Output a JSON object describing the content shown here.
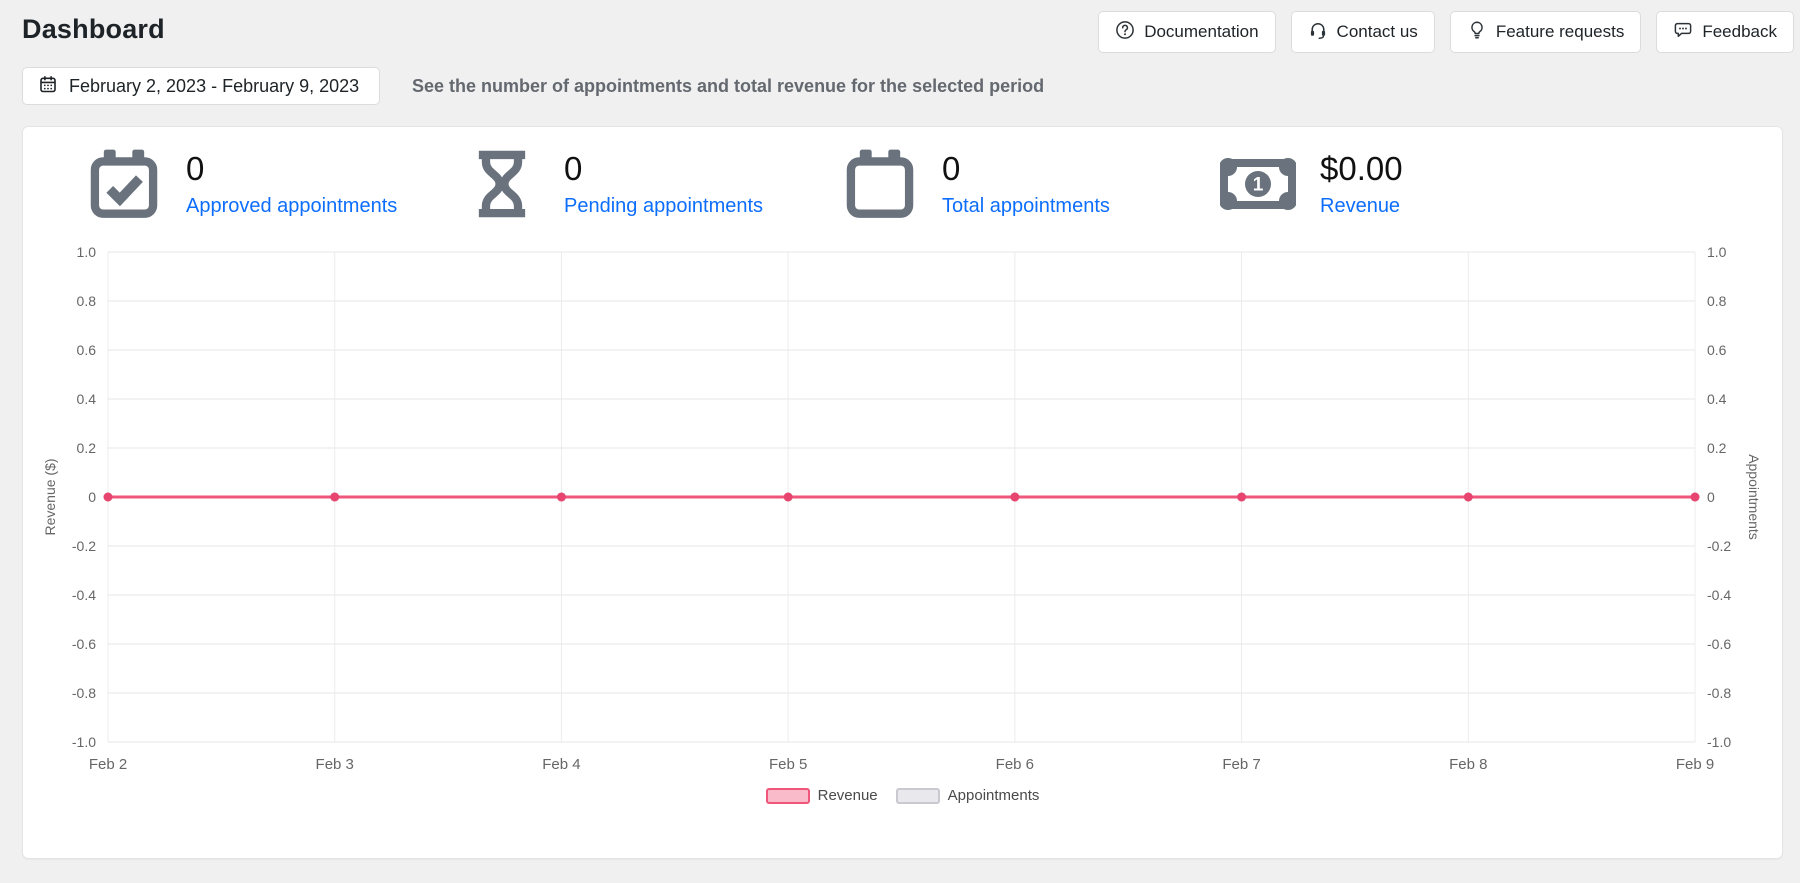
{
  "page": {
    "title": "Dashboard"
  },
  "header": {
    "buttons": [
      {
        "icon": "question-circle-icon",
        "label": "Documentation"
      },
      {
        "icon": "headset-icon",
        "label": "Contact us"
      },
      {
        "icon": "lightbulb-icon",
        "label": "Feature requests"
      },
      {
        "icon": "chat-dots-icon",
        "label": "Feedback"
      }
    ]
  },
  "filters": {
    "date_range": "February 2, 2023 - February 9, 2023",
    "description": "See the number of appointments and total revenue for the selected period"
  },
  "stats": [
    {
      "icon": "calendar-check-icon",
      "value": "0",
      "label": "Approved appointments"
    },
    {
      "icon": "hourglass-icon",
      "value": "0",
      "label": "Pending appointments"
    },
    {
      "icon": "calendar-icon",
      "value": "0",
      "label": "Total appointments"
    },
    {
      "icon": "banknote-icon",
      "value": "$0.00",
      "label": "Revenue"
    }
  ],
  "colors": {
    "page_background": "#f0f0f1",
    "card_background": "#ffffff",
    "link_blue": "#0d6efd",
    "icon_gray": "#69727d",
    "revenue_line": "#f0557b",
    "appointments_gray": "#c9c9d1"
  },
  "chart_data": {
    "type": "line",
    "categories": [
      "Feb 2",
      "Feb 3",
      "Feb 4",
      "Feb 5",
      "Feb 6",
      "Feb 7",
      "Feb 8",
      "Feb 9"
    ],
    "series": [
      {
        "name": "Revenue",
        "values": [
          0,
          0,
          0,
          0,
          0,
          0,
          0,
          0
        ],
        "line_color": "#f0557b",
        "point_color": "#e84470",
        "swatch_fill": "#f9bac9",
        "swatch_border": "#f0557b",
        "axis": "left"
      },
      {
        "name": "Appointments",
        "values": [
          0,
          0,
          0,
          0,
          0,
          0,
          0,
          0
        ],
        "line_color": "#dcdce2",
        "point_color": "#c9c9d1",
        "swatch_fill": "#e9e9ed",
        "swatch_border": "#c9c9d1",
        "axis": "right"
      }
    ],
    "ylabel_left": "Revenue ($)",
    "ylabel_right": "Appointments",
    "ylim": [
      -1.0,
      1.0
    ],
    "ytick_step": 0.2,
    "grid": true,
    "legend_position": "bottom"
  }
}
